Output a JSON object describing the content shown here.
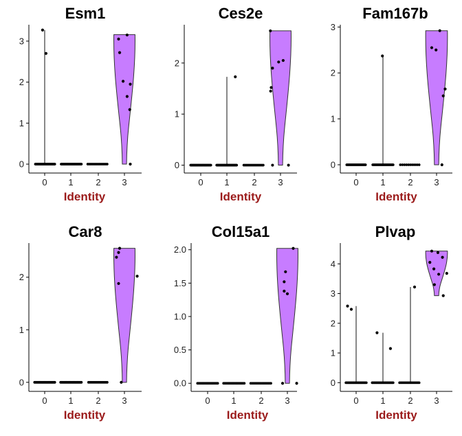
{
  "chart_data": [
    {
      "type": "violin",
      "title": "Esm1",
      "xlabel": "Identity",
      "ylabel": "",
      "categories": [
        "0",
        "1",
        "2",
        "3"
      ],
      "ylim": [
        -0.15,
        3.4
      ],
      "yticks": [
        0,
        1,
        2,
        3
      ],
      "fill": "#c77cff",
      "violins": [
        {
          "category": "0",
          "max": 3.27
        },
        {
          "category": "1",
          "max": 0
        },
        {
          "category": "2",
          "max": 0
        },
        {
          "category": "3",
          "max": 3.16
        }
      ],
      "points": [
        {
          "x": -0.08,
          "y": 3.27
        },
        {
          "x": 0.05,
          "y": 2.7
        },
        {
          "x": 2.78,
          "y": 3.05
        },
        {
          "x": 3.1,
          "y": 3.15
        },
        {
          "x": 2.82,
          "y": 2.72
        },
        {
          "x": 2.95,
          "y": 2.02
        },
        {
          "x": 3.22,
          "y": 1.95
        },
        {
          "x": 3.1,
          "y": 1.65
        },
        {
          "x": 3.2,
          "y": 1.33
        },
        {
          "x": 3.22,
          "y": 0.0
        }
      ],
      "zero_points": [
        [
          -0.35,
          0.38,
          26
        ],
        [
          0.62,
          1.38,
          26
        ],
        [
          1.62,
          2.35,
          14
        ]
      ]
    },
    {
      "type": "violin",
      "title": "Ces2e",
      "xlabel": "Identity",
      "ylabel": "",
      "categories": [
        "0",
        "1",
        "2",
        "3"
      ],
      "ylim": [
        -0.1,
        2.75
      ],
      "yticks": [
        0,
        1,
        2
      ],
      "fill": "#c77cff",
      "violins": [
        {
          "category": "0",
          "max": 0
        },
        {
          "category": "1",
          "max": 1.73
        },
        {
          "category": "2",
          "max": 0
        },
        {
          "category": "3",
          "max": 2.63
        }
      ],
      "points": [
        {
          "x": 1.3,
          "y": 1.73
        },
        {
          "x": 2.62,
          "y": 2.63
        },
        {
          "x": 3.1,
          "y": 2.05
        },
        {
          "x": 2.93,
          "y": 2.02
        },
        {
          "x": 2.7,
          "y": 1.9
        },
        {
          "x": 2.65,
          "y": 1.52
        },
        {
          "x": 2.63,
          "y": 1.45
        },
        {
          "x": 2.7,
          "y": 0.0
        },
        {
          "x": 3.3,
          "y": 0.0
        }
      ],
      "zero_points": [
        [
          -0.38,
          0.38,
          26
        ],
        [
          0.6,
          1.35,
          26
        ],
        [
          1.62,
          2.35,
          16
        ]
      ]
    },
    {
      "type": "violin",
      "title": "Fam167b",
      "xlabel": "Identity",
      "ylabel": "",
      "categories": [
        "0",
        "1",
        "2",
        "3"
      ],
      "ylim": [
        -0.12,
        3.05
      ],
      "yticks": [
        0,
        1,
        2,
        3
      ],
      "fill": "#c77cff",
      "violins": [
        {
          "category": "0",
          "max": 0
        },
        {
          "category": "1",
          "max": 2.37
        },
        {
          "category": "2",
          "max": 0
        },
        {
          "category": "3",
          "max": 2.92
        }
      ],
      "points": [
        {
          "x": 0.98,
          "y": 2.37
        },
        {
          "x": 3.12,
          "y": 2.92
        },
        {
          "x": 2.82,
          "y": 2.55
        },
        {
          "x": 2.98,
          "y": 2.5
        },
        {
          "x": 3.32,
          "y": 1.65
        },
        {
          "x": 3.25,
          "y": 1.5
        },
        {
          "x": 3.2,
          "y": 0.0
        }
      ],
      "zero_points": [
        [
          -0.35,
          0.35,
          24
        ],
        [
          0.62,
          1.38,
          26
        ],
        [
          1.65,
          2.35,
          10
        ]
      ]
    },
    {
      "type": "violin",
      "title": "Car8",
      "xlabel": "Identity",
      "ylabel": "",
      "categories": [
        "0",
        "1",
        "2",
        "3"
      ],
      "ylim": [
        -0.12,
        2.65
      ],
      "yticks": [
        0,
        1,
        2
      ],
      "fill": "#c77cff",
      "violins": [
        {
          "category": "0",
          "max": 0
        },
        {
          "category": "1",
          "max": 0
        },
        {
          "category": "2",
          "max": 0
        },
        {
          "category": "3",
          "max": 2.55
        }
      ],
      "points": [
        {
          "x": 2.82,
          "y": 2.55
        },
        {
          "x": 2.78,
          "y": 2.47
        },
        {
          "x": 2.7,
          "y": 2.38
        },
        {
          "x": 3.48,
          "y": 2.02
        },
        {
          "x": 2.78,
          "y": 1.88
        },
        {
          "x": 2.88,
          "y": 0.0
        }
      ],
      "zero_points": [
        [
          -0.38,
          0.38,
          26
        ],
        [
          0.6,
          1.38,
          26
        ],
        [
          1.65,
          2.35,
          14
        ]
      ]
    },
    {
      "type": "violin",
      "title": "Col15a1",
      "xlabel": "Identity",
      "ylabel": "",
      "categories": [
        "0",
        "1",
        "2",
        "3"
      ],
      "ylim": [
        -0.08,
        2.1
      ],
      "yticks": [
        0.0,
        0.5,
        1.0,
        1.5,
        2.0
      ],
      "fill": "#c77cff",
      "violins": [
        {
          "category": "0",
          "max": 0
        },
        {
          "category": "1",
          "max": 0
        },
        {
          "category": "2",
          "max": 0
        },
        {
          "category": "3",
          "max": 2.02
        }
      ],
      "points": [
        {
          "x": 3.22,
          "y": 2.02
        },
        {
          "x": 2.93,
          "y": 1.67
        },
        {
          "x": 2.88,
          "y": 1.52
        },
        {
          "x": 2.88,
          "y": 1.38
        },
        {
          "x": 3.0,
          "y": 1.34
        },
        {
          "x": 2.82,
          "y": 0.0
        },
        {
          "x": 3.35,
          "y": 0.0
        }
      ],
      "zero_points": [
        [
          -0.38,
          0.38,
          26
        ],
        [
          0.6,
          1.38,
          26
        ],
        [
          1.62,
          2.38,
          16
        ]
      ]
    },
    {
      "type": "violin",
      "title": "Plvap",
      "xlabel": "Identity",
      "ylabel": "",
      "categories": [
        "0",
        "1",
        "2",
        "3"
      ],
      "ylim": [
        -0.2,
        4.7
      ],
      "yticks": [
        0,
        1,
        2,
        3,
        4
      ],
      "fill": "#c77cff",
      "violins": [
        {
          "category": "0",
          "max": 2.58
        },
        {
          "category": "1",
          "max": 1.68
        },
        {
          "category": "2",
          "max": 3.22
        },
        {
          "category": "3",
          "min": 2.93,
          "max": 4.43
        }
      ],
      "points": [
        {
          "x": -0.32,
          "y": 2.58
        },
        {
          "x": -0.18,
          "y": 2.47
        },
        {
          "x": 0.78,
          "y": 1.68
        },
        {
          "x": 1.28,
          "y": 1.15
        },
        {
          "x": 2.18,
          "y": 3.22
        },
        {
          "x": 2.82,
          "y": 4.43
        },
        {
          "x": 3.05,
          "y": 4.38
        },
        {
          "x": 3.22,
          "y": 4.22
        },
        {
          "x": 2.75,
          "y": 4.05
        },
        {
          "x": 2.9,
          "y": 3.83
        },
        {
          "x": 3.38,
          "y": 3.68
        },
        {
          "x": 3.08,
          "y": 3.65
        },
        {
          "x": 2.92,
          "y": 3.3
        },
        {
          "x": 3.25,
          "y": 2.93
        }
      ],
      "zero_points": [
        [
          -0.38,
          0.38,
          22
        ],
        [
          0.6,
          1.38,
          22
        ],
        [
          1.62,
          2.35,
          16
        ]
      ]
    }
  ]
}
